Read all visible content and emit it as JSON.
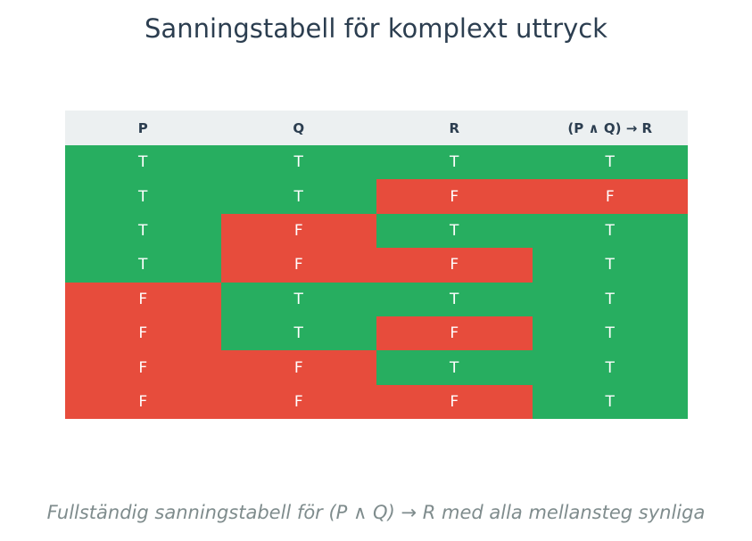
{
  "title": "Sanningstabell för komplext uttryck",
  "caption": "Fullständig sanningstabell för (P ∧ Q) → R med alla mellansteg synliga",
  "colors": {
    "true_cell": "#27ae60",
    "false_cell": "#e74c3c",
    "header_bg": "#ecf0f1",
    "header_text": "#2c3e50",
    "cell_text": "#ffffff",
    "caption_text": "#7f8c8d"
  },
  "chart_data": {
    "type": "table",
    "title": "Sanningstabell för komplext uttryck",
    "columns": [
      "P",
      "Q",
      "R",
      "(P ∧ Q) → R"
    ],
    "rows": [
      [
        "T",
        "T",
        "T",
        "T"
      ],
      [
        "T",
        "T",
        "F",
        "F"
      ],
      [
        "T",
        "F",
        "T",
        "T"
      ],
      [
        "T",
        "F",
        "F",
        "T"
      ],
      [
        "F",
        "T",
        "T",
        "T"
      ],
      [
        "F",
        "T",
        "F",
        "T"
      ],
      [
        "F",
        "F",
        "T",
        "T"
      ],
      [
        "F",
        "F",
        "F",
        "T"
      ]
    ]
  }
}
